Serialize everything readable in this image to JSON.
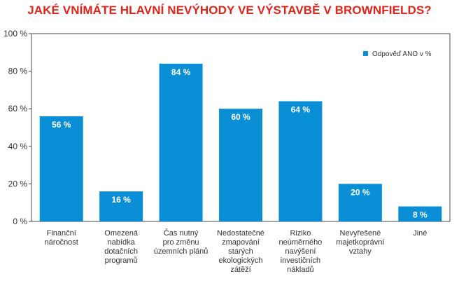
{
  "chart_data": {
    "type": "bar",
    "title": "JAKÉ VNÍMÁTE HLAVNÍ NEVÝHODY VE VÝSTAVBĚ V BROWNFIELDS?",
    "categories": [
      [
        "Finanční",
        "náročnost"
      ],
      [
        "Omezená",
        "nabídka",
        "dotačních",
        "programů"
      ],
      [
        "Čas nutný",
        "pro změnu",
        "územních plánů"
      ],
      [
        "Nedostatečné",
        "zmapování",
        "starých",
        "ekologických",
        "zátěží"
      ],
      [
        "Riziko",
        "neúměrného",
        "navýšení",
        "investičních",
        "nákladů"
      ],
      [
        "Nevyřešené",
        "majetkoprávní",
        "vztahy"
      ],
      [
        "Jiné"
      ]
    ],
    "values": [
      56,
      16,
      84,
      60,
      64,
      20,
      8
    ],
    "data_labels": [
      "56 %",
      "16 %",
      "84 %",
      "60 %",
      "64 %",
      "20 %",
      "8 %"
    ],
    "series": [
      {
        "name": "Odpověď ANO v %",
        "values": [
          56,
          16,
          84,
          60,
          64,
          20,
          8
        ]
      }
    ],
    "yticks": [
      0,
      20,
      40,
      60,
      80,
      100
    ],
    "ytick_labels": [
      "0 %",
      "20 %",
      "40 %",
      "60 %",
      "80 %",
      "100 %"
    ],
    "ylim": [
      0,
      100
    ],
    "grid": false,
    "legend_position": "top-right",
    "colors": {
      "bar": "#0a8fd6",
      "title": "#e2231a",
      "frame": "#4a4a4a"
    }
  }
}
